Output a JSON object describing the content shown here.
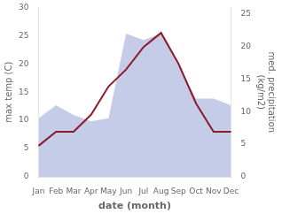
{
  "chart_data": {
    "type": "line",
    "categories": [
      "Jan",
      "Feb",
      "Mar",
      "Apr",
      "May",
      "Jun",
      "Jul",
      "Aug",
      "Sep",
      "Oct",
      "Nov",
      "Dec"
    ],
    "series": [
      {
        "type": "area",
        "color": "#c5cce8",
        "axis": "y2",
        "values": [
          9.0,
          11.0,
          9.5,
          8.5,
          9.0,
          22.0,
          21.0,
          22.0,
          17.0,
          12.0,
          12.0,
          11.0
        ]
      },
      {
        "type": "line",
        "color": "#8b1a2a",
        "values": [
          5.5,
          8.0,
          8.0,
          11.0,
          16.0,
          19.0,
          23.0,
          25.5,
          20.0,
          13.0,
          8.0,
          8.0
        ]
      }
    ],
    "xlabel": "date (month)",
    "ylabel": "max temp (C)",
    "y2label": "med. precipitation\n(kg/m2)",
    "ylim": [
      0,
      30
    ],
    "yticks": [
      0,
      5,
      10,
      15,
      20,
      25,
      30
    ],
    "y2lim": [
      0,
      26
    ],
    "y2ticks": [
      0,
      5,
      10,
      15,
      20,
      25
    ],
    "grid": false
  }
}
